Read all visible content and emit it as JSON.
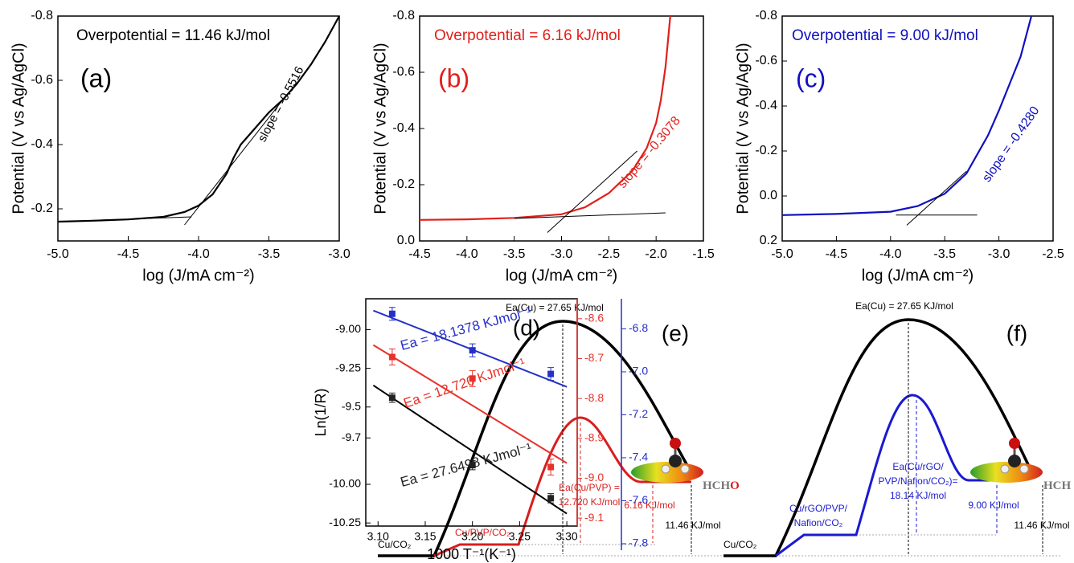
{
  "chart_data": [
    {
      "type": "line",
      "annotations": [
        "Overpotential = 11.46 kJ/mol",
        "(a)",
        "slope = -0.5516"
      ],
      "xlabel": "log (J/mA cm⁻²)",
      "ylabel": "Potential (V vs Ag/AgCl)",
      "xlim": [
        -5,
        -3
      ],
      "xticks": [
        {
          "value": -5,
          "label": "-5.0"
        },
        -4.5,
        {
          "value": -4,
          "label": "-4.0"
        },
        -3.5,
        {
          "value": -3,
          "label": "-3.0"
        }
      ],
      "ylim": [
        -0.1,
        -0.8
      ],
      "yticks": [
        -0.8,
        -0.6,
        -0.4,
        -0.2
      ],
      "series": [
        {
          "color": "#000000",
          "x": [
            -5,
            -4.75,
            -4.5,
            -4.25,
            -4.1,
            -4,
            -3.9,
            -3.8,
            -3.75,
            -3.7,
            -3.6,
            -3.5,
            -3.4,
            -3.3,
            -3.2,
            -3.1,
            -3
          ],
          "values": [
            -0.16,
            -0.163,
            -0.167,
            -0.175,
            -0.19,
            -0.21,
            -0.245,
            -0.31,
            -0.36,
            -0.4,
            -0.45,
            -0.5,
            -0.54,
            -0.59,
            -0.65,
            -0.72,
            -0.8
          ]
        },
        {
          "color": "#000000",
          "x": [
            -4.1,
            -3.4
          ],
          "values": [
            -0.15,
            -0.54
          ]
        },
        {
          "color": "#000000",
          "x": [
            -5,
            -4.05
          ],
          "values": [
            -0.16,
            -0.175
          ]
        }
      ]
    },
    {
      "type": "line",
      "annotations": [
        "Overpotential = 6.16 kJ/mol",
        "(b)",
        "slope = -0.3078"
      ],
      "xlabel": "log (J/mA cm⁻²)",
      "ylabel": "Potential (V vs Ag/AgCl)",
      "xlim": [
        -4.5,
        -1.5
      ],
      "xticks": [
        -4.5,
        {
          "value": -4,
          "label": "-4.0"
        },
        -3.5,
        {
          "value": -3,
          "label": "-3.0"
        },
        -2.5,
        {
          "value": -2,
          "label": "-2.0"
        },
        -1.5
      ],
      "ylim": [
        0,
        -0.8
      ],
      "yticks": [
        -0.8,
        -0.6,
        -0.4,
        -0.2,
        {
          "value": 0,
          "label": "0.0"
        }
      ],
      "series": [
        {
          "color": "#e0201b",
          "x": [
            -4.5,
            -4,
            -3.5,
            -3,
            -2.75,
            -2.5,
            -2.25,
            -2.1,
            -2,
            -1.95,
            -1.9,
            -1.85
          ],
          "values": [
            -0.075,
            -0.077,
            -0.082,
            -0.095,
            -0.12,
            -0.17,
            -0.25,
            -0.33,
            -0.42,
            -0.5,
            -0.62,
            -0.8
          ]
        },
        {
          "color": "#000000",
          "x": [
            -3.15,
            -2.2
          ],
          "values": [
            -0.03,
            -0.32
          ]
        },
        {
          "color": "#000000",
          "x": [
            -3.5,
            -1.9
          ],
          "values": [
            -0.08,
            -0.1
          ]
        }
      ]
    },
    {
      "type": "line",
      "annotations": [
        "Overpotential = 9.00 kJ/mol",
        "(c)",
        "slope = -0.4280"
      ],
      "xlabel": "log (J/mA cm⁻²)",
      "ylabel": "Potential (V vs Ag/AgCl)",
      "xlim": [
        -5,
        -2.5
      ],
      "xticks": [
        {
          "value": -5,
          "label": "-5.0"
        },
        -4.5,
        {
          "value": -4,
          "label": "-4.0"
        },
        -3.5,
        {
          "value": -3,
          "label": "-3.0"
        },
        -2.5
      ],
      "ylim": [
        0.2,
        -0.8
      ],
      "yticks": [
        -0.8,
        -0.6,
        -0.4,
        -0.2,
        {
          "value": 0,
          "label": "0.0"
        },
        0.2
      ],
      "series": [
        {
          "color": "#1010c0",
          "x": [
            -5,
            -4.5,
            -4,
            -3.75,
            -3.5,
            -3.3,
            -3.1,
            -3,
            -2.9,
            -2.8,
            -2.7
          ],
          "values": [
            0.085,
            0.08,
            0.07,
            0.045,
            -0.01,
            -0.1,
            -0.27,
            -0.38,
            -0.5,
            -0.62,
            -0.8
          ]
        },
        {
          "color": "#000000",
          "x": [
            -3.85,
            -3.3
          ],
          "values": [
            0.13,
            -0.11
          ]
        },
        {
          "color": "#000000",
          "x": [
            -3.95,
            -3.2
          ],
          "values": [
            0.085,
            0.085
          ]
        }
      ]
    },
    {
      "type": "scatter",
      "annotations": [
        "(d)",
        "Ea = 18.1378 KJmol⁻¹",
        "Ea = 12.720 KJmol⁻¹",
        "Ea = 27.6498 KJmol⁻¹"
      ],
      "xlabel": "1000 T⁻¹(K⁻¹)",
      "ylabel": "Ln(1/R)",
      "xlim": [
        3.087,
        3.311
      ],
      "xticks": [
        {
          "value": 3.1,
          "label": "3.10"
        },
        3.15,
        {
          "value": 3.2,
          "label": "3.20"
        },
        3.25,
        {
          "value": 3.3,
          "label": "3.30"
        }
      ],
      "ylim": [
        -10.27,
        -8.8
      ],
      "yticks": [
        {
          "value": -9,
          "label": "-9.00"
        },
        -9.25,
        -9.5,
        -9.7,
        {
          "value": -10,
          "label": "-10.00"
        },
        -10.25
      ],
      "y2lim": [
        -9.12,
        -8.55
      ],
      "y2ticks": [
        -8.6,
        -8.7,
        -8.8,
        -8.9,
        {
          "value": -9,
          "label": "-9.0"
        },
        -9.1
      ],
      "y3lim": [
        -7.83,
        -6.66
      ],
      "y3ticks": [
        -6.8,
        {
          "value": -7,
          "label": "-7.0"
        },
        -7.2,
        -7.4,
        -7.6,
        -7.8
      ],
      "x": [
        3.115,
        3.2,
        3.283
      ],
      "series": [
        {
          "color": "#222222",
          "axis": "y",
          "values": [
            -9.44,
            -9.876,
            -10.09
          ],
          "errors": [
            0.03,
            0.03,
            0.03
          ]
        },
        {
          "color": "#e8312a",
          "axis": "y2",
          "values": [
            -8.696,
            -8.75,
            -8.972
          ],
          "errors": [
            0.02,
            0.02,
            0.02
          ]
        },
        {
          "color": "#2430c8",
          "axis": "y3",
          "values": [
            -6.73,
            -6.9,
            -7.01
          ],
          "errors": [
            0.03,
            0.03,
            0.03
          ]
        }
      ],
      "fits": [
        {
          "color": "#000000",
          "axis": "y",
          "x": [
            3.095,
            3.3
          ],
          "values": [
            -9.36,
            -10.19
          ]
        },
        {
          "color": "#e8312a",
          "axis": "y2",
          "x": [
            3.095,
            3.3
          ],
          "values": [
            -8.666,
            -8.962
          ]
        },
        {
          "color": "#2430c8",
          "axis": "y3",
          "x": [
            3.095,
            3.3
          ],
          "values": [
            -6.715,
            -7.07
          ]
        }
      ]
    }
  ],
  "diagrams": [
    {
      "panel": "(e)",
      "barrier": "Ea(Cu) = 27.65 KJ/mol",
      "start": "Cu/CO₂",
      "intermediate": [
        "Cu/PVP/CO₂"
      ],
      "catalyst_barrier": [
        "Ea(Cu/PVP) =",
        "12.720 KJ/mol"
      ],
      "overpotential": "6.16 KJ/mol",
      "reference": "11.46 KJ/mol",
      "product": [
        "HCH",
        "O"
      ]
    },
    {
      "panel": "(f)",
      "barrier": "Ea(Cu) = 27.65 KJ/mol",
      "start": "Cu/CO₂",
      "intermediate": [
        "Cu/rGO/PVP/",
        "Nafion/CO₂"
      ],
      "catalyst_barrier": [
        "Ea(Cu/rGO/",
        "PVP/Nafion/CO₂)=",
        "18.14 KJ/mol"
      ],
      "overpotential": "9.00 KJ/mol",
      "reference": "11.46 KJ/mol",
      "product": [
        "HCH"
      ]
    }
  ]
}
